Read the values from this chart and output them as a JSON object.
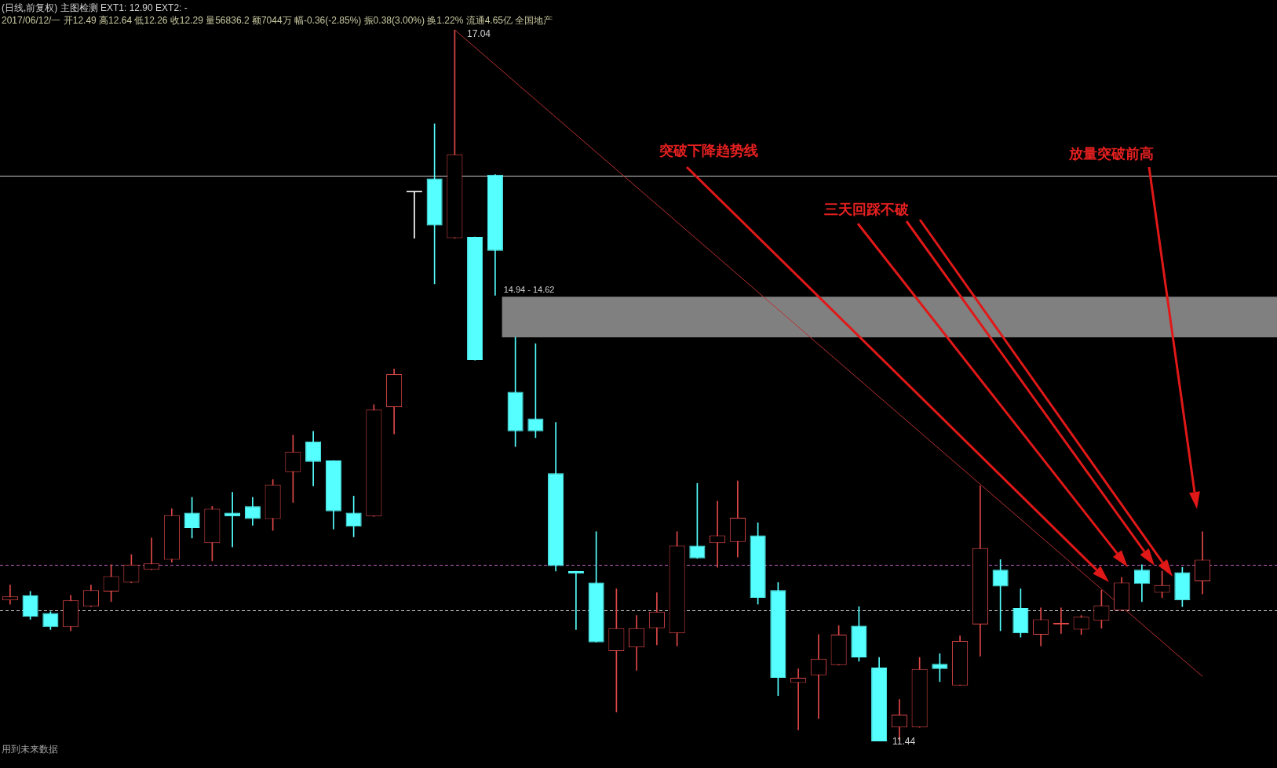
{
  "chart_data": {
    "type": "candlestick",
    "title": "(日线,前复权) 主图检测 EXT1: 12.90 EXT2: -",
    "subtitle": "2017/06/12/一 开12.49 高12.64 低12.26 收12.29 量56836.2 额7044万 幅-0.36(-2.85%) 振0.38(3.00%) 换1.22% 流通4.65亿 全国地产",
    "categories": [
      null,
      null,
      null,
      null,
      null,
      null,
      null,
      null,
      null,
      null,
      null,
      null,
      null,
      null,
      null,
      null,
      null,
      null,
      null,
      null,
      null,
      null,
      null,
      null,
      null,
      null,
      null,
      null,
      null,
      null,
      null,
      null,
      null,
      null,
      null,
      null,
      null,
      null,
      null,
      null,
      null,
      null,
      null,
      null,
      null,
      null,
      null,
      null,
      null,
      null,
      null,
      null,
      null,
      null,
      null,
      null,
      null,
      null,
      null,
      null
    ],
    "ohlc": [
      [
        12.55,
        12.67,
        12.52,
        12.58
      ],
      [
        12.59,
        12.62,
        12.4,
        12.42
      ],
      [
        12.45,
        12.46,
        12.32,
        12.34
      ],
      [
        12.34,
        12.59,
        12.31,
        12.55
      ],
      [
        12.5,
        12.67,
        12.5,
        12.63
      ],
      [
        12.62,
        12.83,
        12.54,
        12.74
      ],
      [
        12.69,
        12.91,
        12.69,
        12.83
      ],
      [
        12.79,
        13.04,
        12.79,
        12.84
      ],
      [
        12.87,
        13.27,
        12.85,
        13.22
      ],
      [
        13.24,
        13.36,
        13.04,
        13.12
      ],
      [
        13.0,
        13.29,
        12.86,
        13.27
      ],
      [
        13.24,
        13.4,
        12.97,
        13.21
      ],
      [
        13.29,
        13.36,
        13.14,
        13.19
      ],
      [
        13.19,
        13.5,
        13.1,
        13.46
      ],
      [
        13.56,
        13.85,
        13.32,
        13.72
      ],
      [
        13.8,
        13.88,
        13.45,
        13.64
      ],
      [
        13.65,
        13.65,
        13.11,
        13.25
      ],
      [
        13.24,
        13.37,
        13.05,
        13.13
      ],
      [
        13.21,
        14.09,
        13.21,
        14.05
      ],
      [
        14.07,
        14.37,
        13.86,
        14.33
      ],
      [
        15.76,
        15.76,
        15.4,
        15.76
      ],
      [
        15.87,
        16.3,
        15.04,
        15.5
      ],
      [
        15.4,
        17.04,
        15.4,
        16.06
      ],
      [
        15.41,
        15.41,
        14.44,
        14.44
      ],
      [
        15.9,
        15.9,
        14.95,
        15.3
      ],
      [
        14.19,
        14.62,
        13.76,
        13.88
      ],
      [
        13.98,
        14.57,
        13.83,
        13.88
      ],
      [
        13.55,
        13.95,
        12.78,
        12.82
      ],
      [
        12.78,
        12.78,
        12.32,
        12.76
      ],
      [
        12.69,
        13.09,
        12.22,
        12.22
      ],
      [
        12.15,
        12.64,
        11.67,
        12.33
      ],
      [
        12.18,
        12.43,
        12.0,
        12.33
      ],
      [
        12.33,
        12.61,
        12.2,
        12.46
      ],
      [
        12.29,
        13.09,
        12.19,
        12.98
      ],
      [
        12.98,
        13.47,
        12.88,
        12.88
      ],
      [
        13.0,
        13.33,
        12.81,
        13.06
      ],
      [
        13.01,
        13.49,
        12.89,
        13.2
      ],
      [
        13.06,
        13.16,
        12.52,
        12.57
      ],
      [
        12.63,
        12.69,
        11.8,
        11.94
      ],
      [
        11.9,
        12.01,
        11.53,
        11.94
      ],
      [
        11.96,
        12.28,
        11.62,
        12.09
      ],
      [
        12.04,
        12.35,
        12.04,
        12.28
      ],
      [
        12.35,
        12.5,
        12.07,
        12.1
      ],
      [
        12.02,
        12.1,
        11.44,
        11.44
      ],
      [
        11.55,
        11.77,
        11.45,
        11.65
      ],
      [
        11.55,
        12.1,
        11.55,
        12.01
      ],
      [
        12.05,
        12.13,
        11.91,
        12.01
      ],
      [
        11.88,
        12.27,
        11.88,
        12.23
      ],
      [
        12.36,
        13.45,
        12.11,
        12.96
      ],
      [
        12.79,
        12.87,
        12.31,
        12.66
      ],
      [
        12.49,
        12.64,
        12.26,
        12.29
      ],
      [
        12.28,
        12.49,
        12.19,
        12.4
      ],
      [
        12.36,
        12.49,
        12.29,
        12.37
      ],
      [
        12.32,
        12.43,
        12.28,
        12.42
      ],
      [
        12.39,
        12.63,
        12.33,
        12.51
      ],
      [
        12.47,
        12.73,
        12.47,
        12.69
      ],
      [
        12.79,
        12.83,
        12.54,
        12.68
      ],
      [
        12.61,
        12.78,
        12.57,
        12.67
      ],
      [
        12.77,
        12.81,
        12.5,
        12.55
      ],
      [
        12.7,
        13.09,
        12.6,
        12.87
      ]
    ],
    "colors": [
      "#e04848",
      "#55ffff",
      "#55ffff",
      "#e04848",
      "#e04848",
      "#e04848",
      "#e04848",
      "#e04848",
      "#e04848",
      "#55ffff",
      "#e04848",
      "#55ffff",
      "#55ffff",
      "#e04848",
      "#e04848",
      "#55ffff",
      "#55ffff",
      "#55ffff",
      "#e04848",
      "#e04848",
      "#ffffff",
      "#55ffff",
      "#e04848",
      "#55ffff",
      "#55ffff",
      "#55ffff",
      "#55ffff",
      "#55ffff",
      "#55ffff",
      "#55ffff",
      "#e04848",
      "#e04848",
      "#e04848",
      "#e04848",
      "#55ffff",
      "#e04848",
      "#e04848",
      "#55ffff",
      "#55ffff",
      "#e04848",
      "#e04848",
      "#e04848",
      "#55ffff",
      "#55ffff",
      "#e04848",
      "#e04848",
      "#55ffff",
      "#e04848",
      "#e04848",
      "#55ffff",
      "#55ffff",
      "#e04848",
      "#e04848",
      "#e04848",
      "#e04848",
      "#e04848",
      "#55ffff",
      "#e04848",
      "#55ffff",
      "#e04848"
    ],
    "series": [
      {
        "type": "line",
        "color": "#b83030",
        "values": [
          null,
          null,
          null,
          null,
          null,
          null,
          null,
          null,
          null,
          null,
          null,
          null,
          null,
          null,
          null,
          null,
          null,
          null,
          null,
          null,
          null,
          null,
          17.04,
          null,
          null,
          null,
          null,
          null,
          null,
          null,
          null,
          null,
          null,
          null,
          null,
          null,
          null,
          null,
          null,
          null,
          null,
          null,
          null,
          null,
          null,
          null,
          null,
          null,
          null,
          null,
          null,
          null,
          null,
          null,
          null,
          null,
          null,
          null,
          null,
          11.95
        ]
      }
    ],
    "bands": [
      {
        "axis": "y",
        "from": 14.62,
        "to": 14.94,
        "label": "14.94 - 14.62",
        "color": "#808080"
      }
    ],
    "ref_lines": [
      {
        "axis": "y",
        "value": 15.89,
        "color": "#c8c8c8",
        "line_style": "solid"
      },
      {
        "axis": "y",
        "value": 12.83,
        "color": "#c060c0",
        "line_style": "dashed"
      },
      {
        "axis": "y",
        "value": 12.47,
        "color": "#d0d0d0",
        "line_style": "dashed"
      }
    ],
    "annotations": [
      "突破下降趋势线",
      "三天回踩不破",
      "放量突破前高",
      "用到未来数据",
      "17.04",
      "11.44"
    ],
    "tick_labels": false,
    "legend": false
  }
}
